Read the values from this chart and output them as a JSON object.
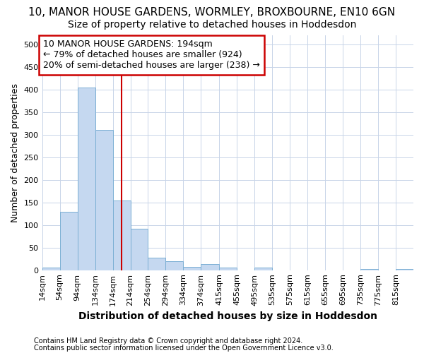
{
  "title": "10, MANOR HOUSE GARDENS, WORMLEY, BROXBOURNE, EN10 6GN",
  "subtitle": "Size of property relative to detached houses in Hoddesdon",
  "xlabel": "Distribution of detached houses by size in Hoddesdon",
  "ylabel": "Number of detached properties",
  "footnote1": "Contains HM Land Registry data © Crown copyright and database right 2024.",
  "footnote2": "Contains public sector information licensed under the Open Government Licence v3.0.",
  "annotation_line1": "10 MANOR HOUSE GARDENS: 194sqm",
  "annotation_line2": "← 79% of detached houses are smaller (924)",
  "annotation_line3": "20% of semi-detached houses are larger (238) →",
  "bar_color": "#c5d8f0",
  "bar_edge_color": "#7bafd4",
  "property_line_color": "#cc0000",
  "property_size": 194,
  "categories": [
    "14sqm",
    "54sqm",
    "94sqm",
    "134sqm",
    "174sqm",
    "214sqm",
    "254sqm",
    "294sqm",
    "334sqm",
    "374sqm",
    "415sqm",
    "455sqm",
    "495sqm",
    "535sqm",
    "575sqm",
    "615sqm",
    "655sqm",
    "695sqm",
    "735sqm",
    "775sqm",
    "815sqm"
  ],
  "values": [
    5,
    130,
    405,
    310,
    155,
    92,
    28,
    20,
    8,
    13,
    5,
    0,
    5,
    0,
    0,
    0,
    0,
    0,
    2,
    0,
    2
  ],
  "bin_edges": [
    14,
    54,
    94,
    134,
    174,
    214,
    254,
    294,
    334,
    374,
    415,
    455,
    495,
    535,
    575,
    615,
    655,
    695,
    735,
    775,
    815,
    855
  ],
  "ylim": [
    0,
    520
  ],
  "yticks": [
    0,
    50,
    100,
    150,
    200,
    250,
    300,
    350,
    400,
    450,
    500
  ],
  "background_color": "#ffffff",
  "grid_color": "#c8d4e8",
  "title_fontsize": 11,
  "subtitle_fontsize": 10,
  "annotation_box_color": "#ffffff",
  "annotation_box_edge": "#cc0000",
  "annotation_fontsize": 9,
  "ylabel_fontsize": 9,
  "xlabel_fontsize": 10,
  "tick_fontsize": 8,
  "footnote_fontsize": 7
}
